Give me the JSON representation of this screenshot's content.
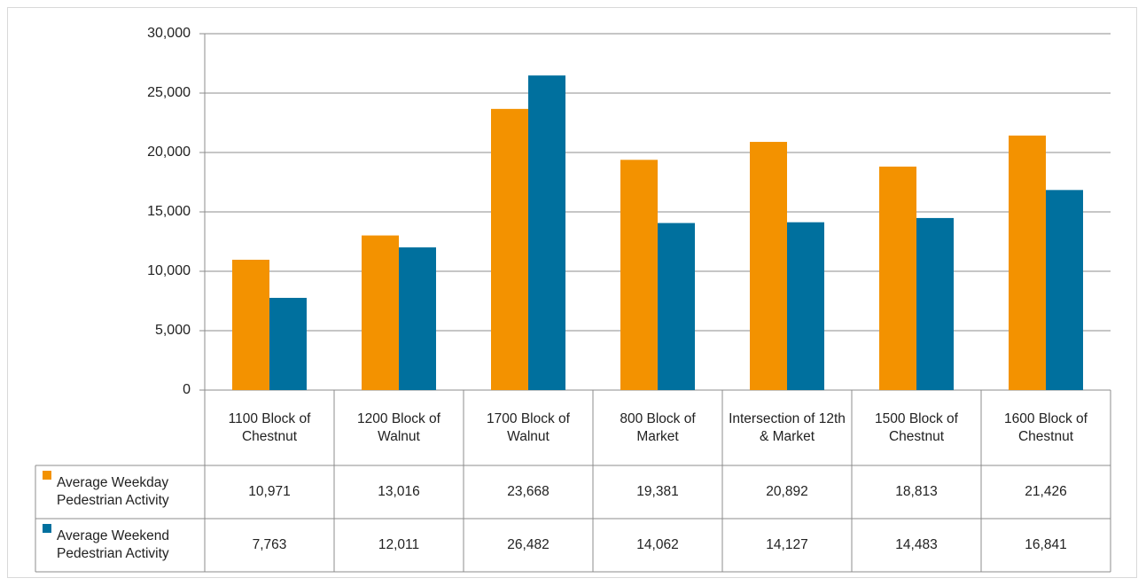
{
  "chart_data": {
    "type": "bar",
    "categories": [
      "1100 Block of Chestnut",
      "1200 Block of Walnut",
      "1700 Block of Walnut",
      "800 Block of Market",
      "Intersection of 12th & Market",
      "1500 Block of Chestnut",
      "1600 Block of Chestnut"
    ],
    "series": [
      {
        "name": "Average Weekday Pedestrian Activity",
        "color": "#f39200",
        "values": [
          10971,
          13016,
          23668,
          19381,
          20892,
          18813,
          21426
        ],
        "value_labels": [
          "10,971",
          "13,016",
          "23,668",
          "19,381",
          "20,892",
          "18,813",
          "21,426"
        ]
      },
      {
        "name": "Average Weekend Pedestrian Activity",
        "color": "#00709e",
        "values": [
          7763,
          12011,
          26482,
          14062,
          14127,
          14483,
          16841
        ],
        "value_labels": [
          "7,763",
          "12,011",
          "26,482",
          "14,062",
          "14,127",
          "14,483",
          "16,841"
        ]
      }
    ],
    "ylim": [
      0,
      30000
    ],
    "yticks": [
      0,
      {
        "value": 5000,
        "label": "5,000"
      },
      {
        "value": 10000,
        "label": "10,000"
      },
      {
        "value": 15000,
        "label": "15,000"
      },
      {
        "value": 20000,
        "label": "20,000"
      },
      {
        "value": 25000,
        "label": "25,000"
      },
      {
        "value": 30000,
        "label": "30,000"
      }
    ],
    "grid": true
  }
}
